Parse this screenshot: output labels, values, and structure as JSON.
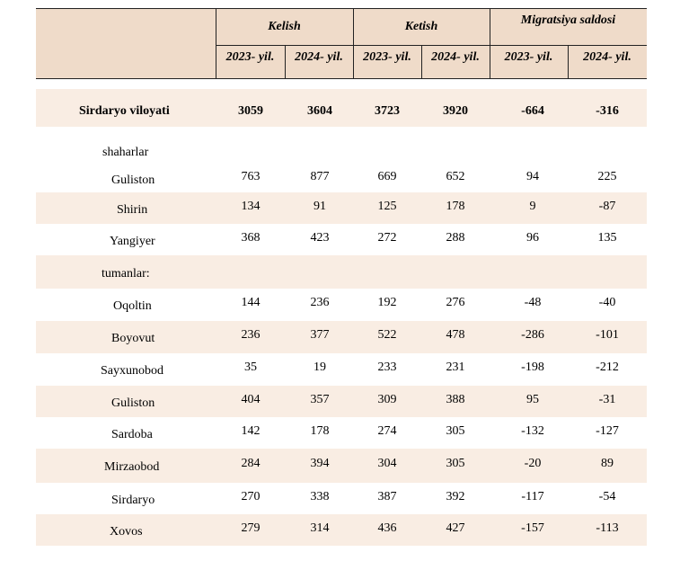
{
  "header": {
    "groups": [
      "Kelish",
      "Ketish",
      "Migratsiya saldosi"
    ],
    "years": [
      "2023- yil.",
      "2024- yil.",
      "2023- yil.",
      "2024- yil.",
      "2023- yil.",
      "2024- yil."
    ]
  },
  "rows": [
    {
      "name": "Sirdaryo viloyati",
      "values": [
        "3059",
        "3604",
        "3723",
        "3920",
        "-664",
        "-316"
      ]
    },
    {
      "name": "shaharlar",
      "values": [
        "",
        "",
        "",
        "",
        "",
        ""
      ]
    },
    {
      "name": "Guliston",
      "values": [
        "763",
        "877",
        "669",
        "652",
        "94",
        "225"
      ]
    },
    {
      "name": "Shirin",
      "values": [
        "134",
        "91",
        "125",
        "178",
        "9",
        "-87"
      ]
    },
    {
      "name": "Yangiyer",
      "values": [
        "368",
        "423",
        "272",
        "288",
        "96",
        "135"
      ]
    },
    {
      "name": "tumanlar:",
      "values": [
        "",
        "",
        "",
        "",
        "",
        ""
      ]
    },
    {
      "name": "Oqoltin",
      "values": [
        "144",
        "236",
        "192",
        "276",
        "-48",
        "-40"
      ]
    },
    {
      "name": "Boyovut",
      "values": [
        "236",
        "377",
        "522",
        "478",
        "-286",
        "-101"
      ]
    },
    {
      "name": "Sayxunobod",
      "values": [
        "35",
        "19",
        "233",
        "231",
        "-198",
        "-212"
      ]
    },
    {
      "name": "Guliston",
      "values": [
        "404",
        "357",
        "309",
        "388",
        "95",
        "-31"
      ]
    },
    {
      "name": "Sardoba",
      "values": [
        "142",
        "178",
        "274",
        "305",
        "-132",
        "-127"
      ]
    },
    {
      "name": "Mirzaobod",
      "values": [
        "284",
        "394",
        "304",
        "305",
        "-20",
        "89"
      ]
    },
    {
      "name": "Sirdaryo",
      "values": [
        "270",
        "338",
        "387",
        "392",
        "-117",
        "-54"
      ]
    },
    {
      "name": "Xovos",
      "values": [
        "279",
        "314",
        "436",
        "427",
        "-157",
        "-113"
      ]
    }
  ]
}
